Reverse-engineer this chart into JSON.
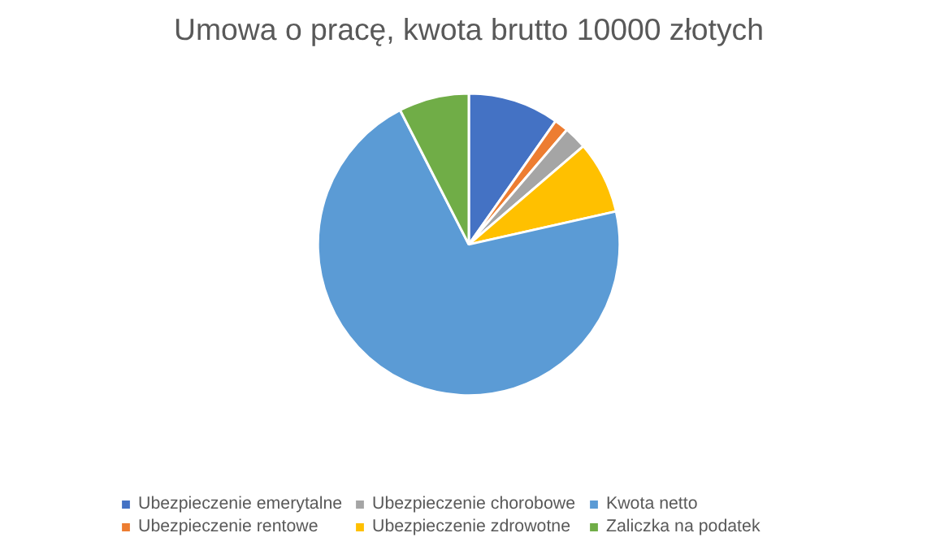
{
  "chart_data": {
    "type": "pie",
    "title": "Umowa o pracę, kwota brutto 10000 złotych",
    "categories": [
      "Ubezpieczenie emerytalne",
      "Ubezpieczenie rentowe",
      "Ubezpieczenie chorobowe",
      "Ubezpieczenie zdrowotne",
      "Kwota netto",
      "Zaliczka na podatek"
    ],
    "values": [
      9.76,
      1.5,
      2.45,
      7.77,
      71.0,
      7.52
    ],
    "colors": [
      "#4472c4",
      "#ed7d31",
      "#a5a5a5",
      "#ffc000",
      "#5b9bd5",
      "#70ad47"
    ],
    "legend": "bottom"
  }
}
